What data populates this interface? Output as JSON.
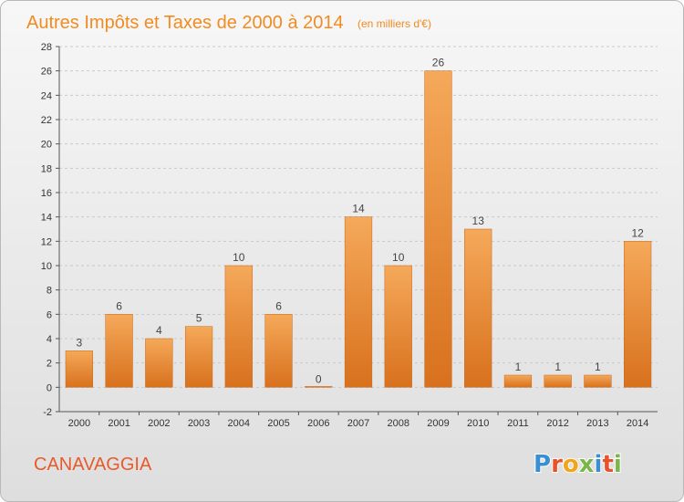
{
  "title": "Autres Impôts et Taxes de 2000 à 2014",
  "subtitle": "(en milliers d'€)",
  "city": "CANAVAGGIA",
  "brand": {
    "letters": [
      "P",
      "r",
      "o",
      "x",
      "i",
      "t",
      "i"
    ],
    "colors": [
      "#3a8fd0",
      "#e8532b",
      "#f2a51a",
      "#7ab648",
      "#3a8fd0",
      "#e8532b",
      "#7ab648"
    ]
  },
  "colors": {
    "bar_light": "#f5a95a",
    "bar_dark": "#d8711d",
    "title": "#f28b20"
  },
  "chart_data": {
    "type": "bar",
    "categories": [
      "2000",
      "2001",
      "2002",
      "2003",
      "2004",
      "2005",
      "2006",
      "2007",
      "2008",
      "2009",
      "2010",
      "2011",
      "2012",
      "2013",
      "2014"
    ],
    "values": [
      3,
      6,
      4,
      5,
      10,
      6,
      0,
      14,
      10,
      26,
      13,
      1,
      1,
      1,
      12
    ],
    "ylim": [
      -2,
      28
    ],
    "yticks": [
      -2,
      0,
      2,
      4,
      6,
      8,
      10,
      12,
      14,
      16,
      18,
      20,
      22,
      24,
      26,
      28
    ],
    "grid": true,
    "xlabel": "",
    "ylabel": ""
  }
}
